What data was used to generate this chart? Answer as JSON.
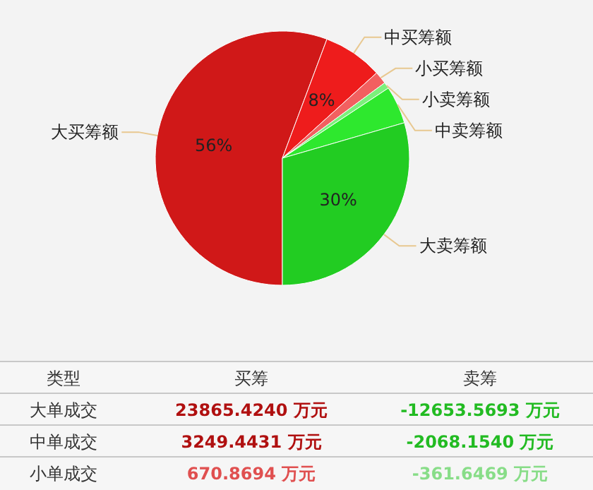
{
  "chart_data": [
    {
      "type": "pie",
      "categories": [
        "大买筹额",
        "中买筹额",
        "小买筹额",
        "小卖筹额",
        "中卖筹额",
        "大卖筹额"
      ],
      "values": [
        55.7,
        7.6,
        1.6,
        0.8,
        4.8,
        29.5
      ],
      "colors": [
        "#d01818",
        "#ee1c1c",
        "#f26060",
        "#7cf07c",
        "#2ee82e",
        "#22cc22"
      ],
      "value_labels": [
        "56%",
        "8%",
        null,
        null,
        null,
        "30%"
      ]
    },
    {
      "type": "other",
      "xlabel": "类型",
      "categories": [
        "大单成交",
        "中单成交",
        "小单成交"
      ],
      "series": [
        {
          "name": "买筹",
          "values": [
            23865.424,
            3249.4431,
            670.8694
          ],
          "colors": [
            "#b01010",
            "#b01010",
            "#e05050"
          ],
          "value_labels": [
            "23865.4240 万元",
            "3249.4431 万元",
            "670.8694 万元"
          ]
        },
        {
          "name": "卖筹",
          "values": [
            -12653.5693,
            -2068.154,
            -361.6469
          ],
          "colors": [
            "#22bb22",
            "#22bb22",
            "#88dd88"
          ],
          "value_labels": [
            "-12653.5693 万元",
            "-2068.1540 万元",
            "-361.6469 万元"
          ]
        }
      ]
    }
  ]
}
